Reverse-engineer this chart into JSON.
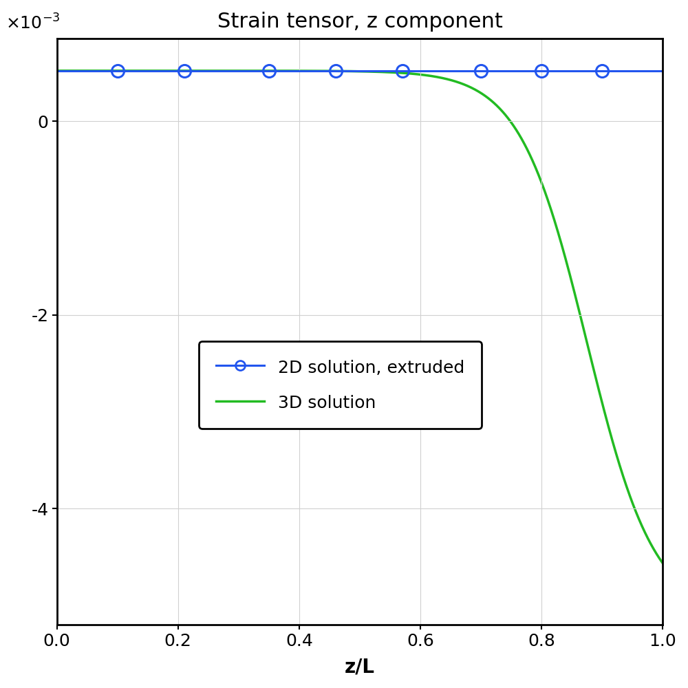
{
  "title": "Strain tensor, z component",
  "xlabel": "z/L",
  "xlim": [
    0,
    1
  ],
  "ylim": [
    -0.0052,
    0.00085
  ],
  "yticks": [
    -0.004,
    -0.002,
    0
  ],
  "xticks": [
    0,
    0.2,
    0.4,
    0.6,
    0.8,
    1.0
  ],
  "line2d_color": "#2255EE",
  "line3d_color": "#22BB22",
  "line2d_value": 0.00052,
  "marker_x": [
    0.1,
    0.21,
    0.35,
    0.46,
    0.57,
    0.7,
    0.8,
    0.9
  ],
  "curve_transition": 0.78,
  "curve_end_value": -0.0051,
  "legend_2d": "2D solution, extruded",
  "legend_3d": "3D solution",
  "title_fontsize": 22,
  "label_fontsize": 20,
  "tick_fontsize": 18,
  "legend_fontsize": 18,
  "background_color": "#ffffff",
  "grid_color": "#d0d0d0"
}
